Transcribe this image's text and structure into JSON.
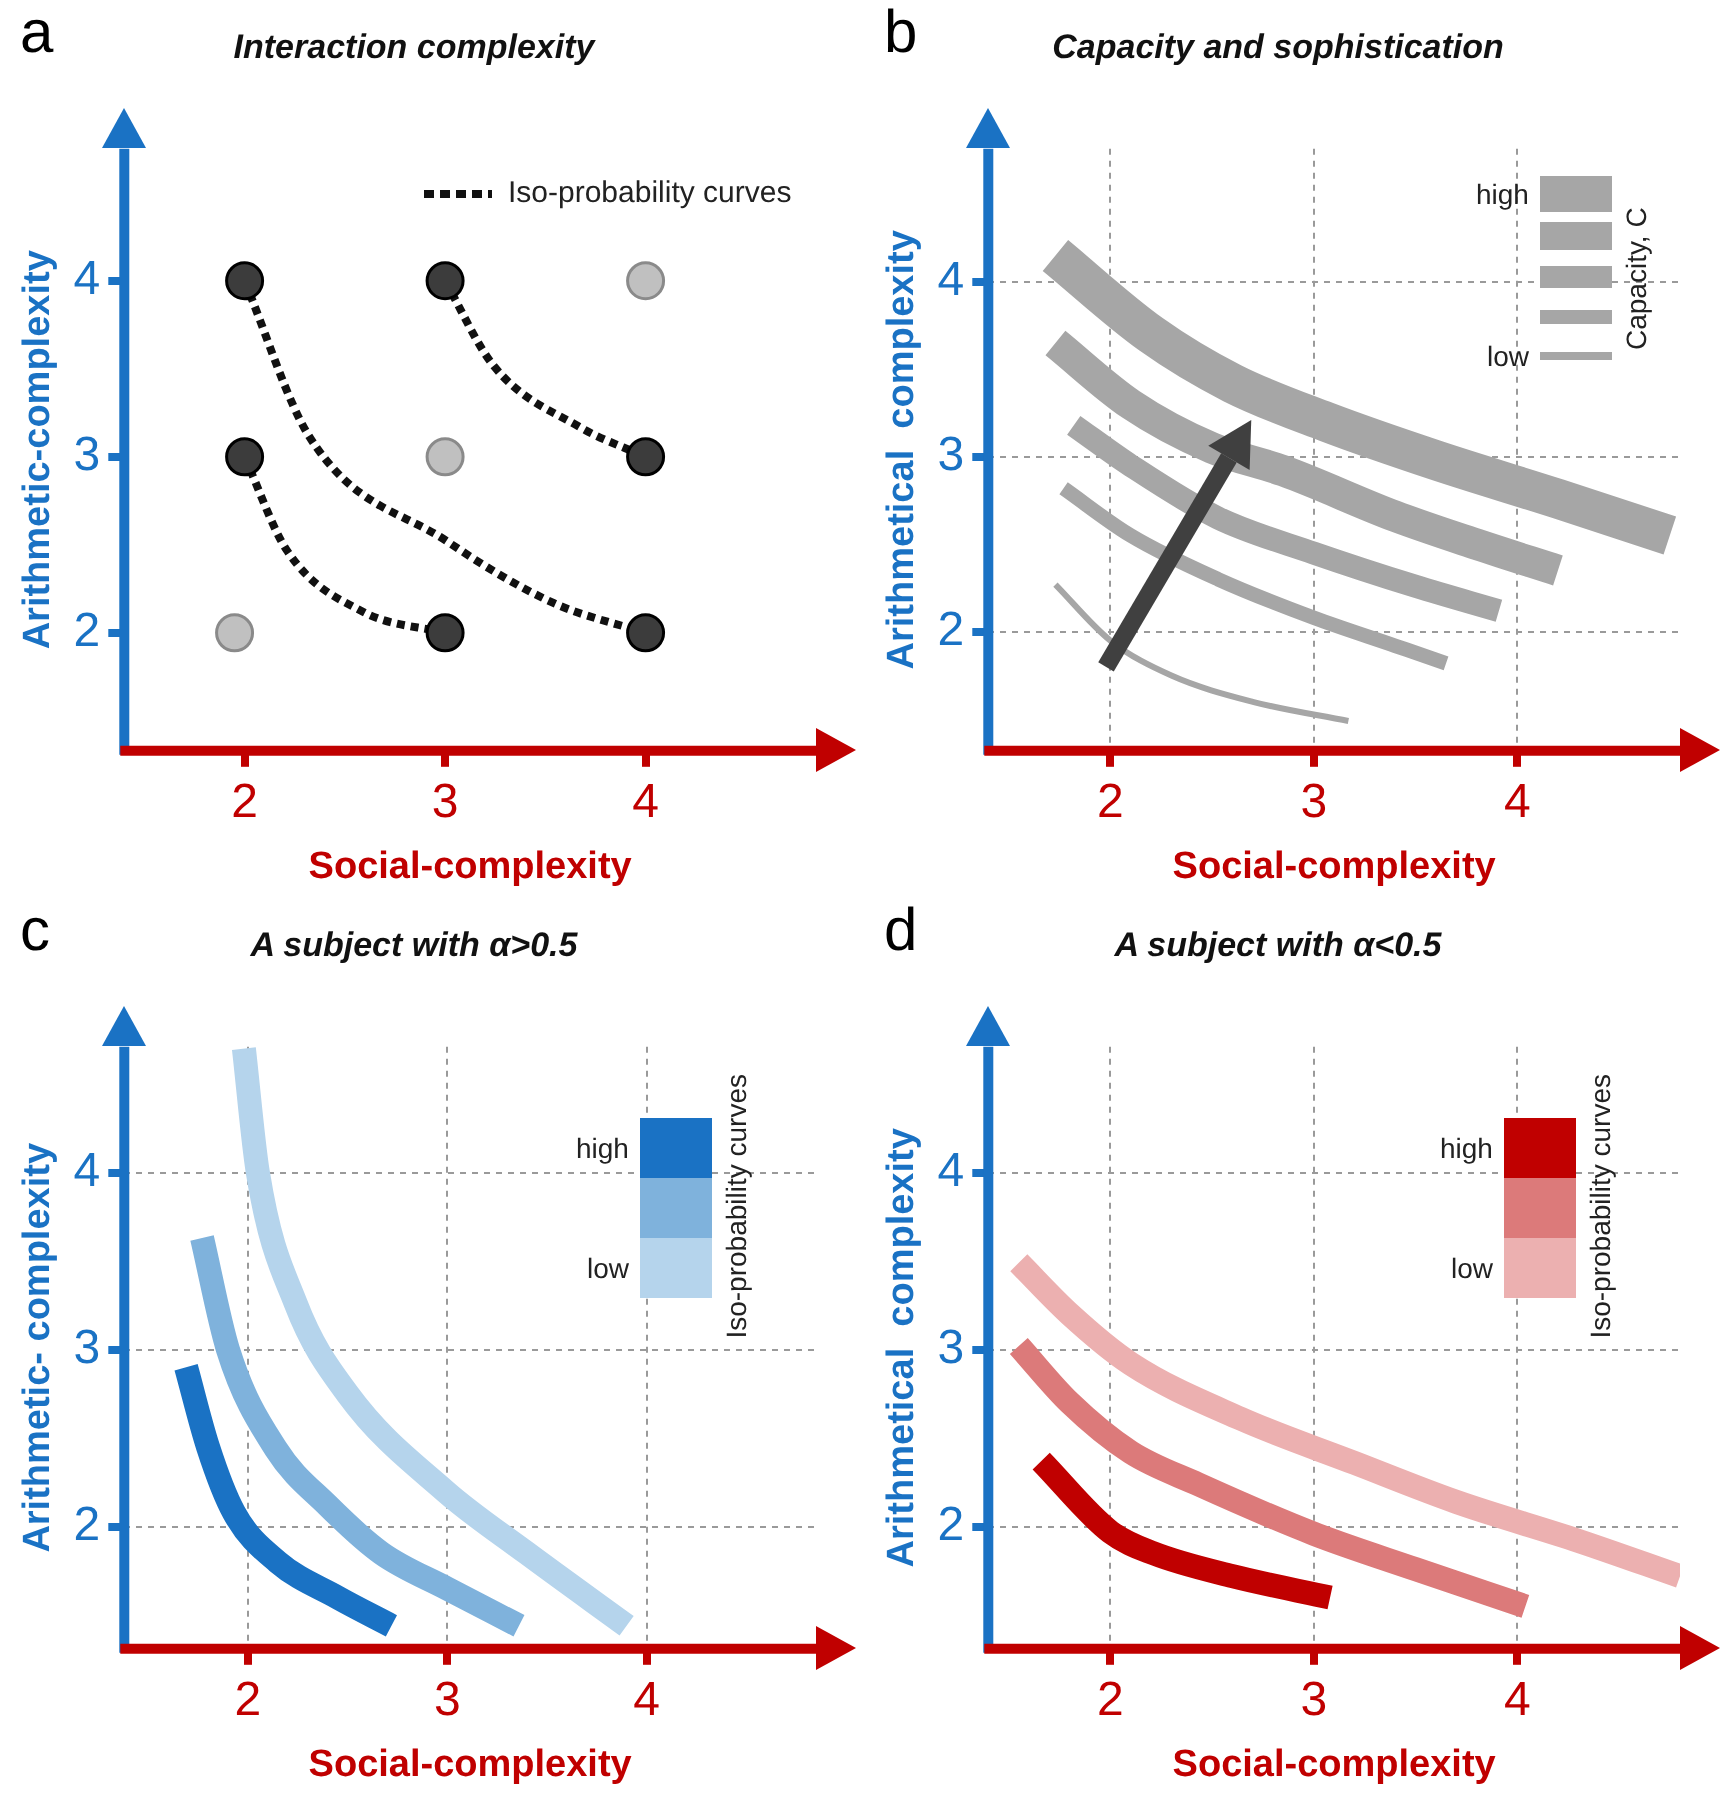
{
  "chart_data": [
    {
      "type": "scatter",
      "title": "Interaction complexity",
      "xlabel": "Social-complexity",
      "ylabel": "Arithmetic-complexity",
      "annotations": [
        "a"
      ],
      "xlim": [
        1.4,
        4.85
      ],
      "ylim": [
        1.33,
        4.75
      ],
      "xticks": [
        2,
        3,
        4
      ],
      "yticks": [
        2,
        3,
        4
      ],
      "grid": false,
      "legend": "top right",
      "marker": "circle",
      "series": [
        {
          "color": "#3c3c3c",
          "x": [
            2,
            2,
            3,
            3,
            4,
            4
          ],
          "values": [
            4,
            3,
            4,
            2,
            3,
            2
          ]
        },
        {
          "color": "#c0c0c0",
          "x": [
            1.95,
            3,
            4
          ],
          "values": [
            2,
            3,
            4
          ]
        },
        {
          "name": "Iso-probability curves",
          "type": "line",
          "line_style": "dashed",
          "marker": "none",
          "color": "#111111",
          "x": [
            2,
            2.32,
            3.01,
            3.54,
            4
          ],
          "values": [
            4,
            3.12,
            2.52,
            2.17,
            2
          ]
        },
        {
          "type": "line",
          "line_style": "dashed",
          "marker": "none",
          "color": "#111111",
          "x": [
            2,
            2.21,
            2.59,
            3
          ],
          "values": [
            3,
            2.47,
            2.12,
            2
          ]
        },
        {
          "type": "line",
          "line_style": "dashed",
          "marker": "none",
          "color": "#111111",
          "x": [
            3,
            3.24,
            3.67,
            4
          ],
          "values": [
            4,
            3.52,
            3.17,
            3
          ]
        }
      ]
    },
    {
      "type": "line",
      "title": "Capacity and sophistication",
      "xlabel": "Social-complexity",
      "ylabel": "Arithmetical  complexity",
      "annotations": [
        "b"
      ],
      "legend_title": "Capacity, C",
      "xlim": [
        1.4,
        4.8
      ],
      "ylim": [
        1.32,
        4.76
      ],
      "xticks": [
        2,
        3,
        4
      ],
      "yticks": [
        2,
        3,
        4
      ],
      "grid": true,
      "legend": "top right",
      "series": [
        {
          "name": "high",
          "color": "#a6a6a6",
          "x": [
            1.73,
            2.2,
            2.6,
            3.06,
            3.6,
            4.2,
            4.75
          ],
          "values": [
            4.15,
            3.7,
            3.42,
            3.2,
            2.98,
            2.76,
            2.55
          ]
        },
        {
          "color": "#a6a6a6",
          "x": [
            1.73,
            2.1,
            2.5,
            2.85,
            3.4,
            3.8,
            4.2
          ],
          "values": [
            3.65,
            3.3,
            3.05,
            2.92,
            2.66,
            2.5,
            2.35
          ]
        },
        {
          "color": "#a6a6a6",
          "x": [
            1.82,
            2.1,
            2.53,
            3,
            3.5,
            3.91
          ],
          "values": [
            3.18,
            2.95,
            2.65,
            2.45,
            2.26,
            2.12
          ]
        },
        {
          "color": "#a6a6a6",
          "x": [
            1.77,
            2.1,
            2.53,
            3,
            3.4,
            3.65
          ],
          "values": [
            2.82,
            2.55,
            2.3,
            2.08,
            1.92,
            1.82
          ]
        },
        {
          "name": "low",
          "color": "#a6a6a6",
          "x": [
            1.73,
            2,
            2.3,
            2.7,
            3.17
          ],
          "values": [
            2.27,
            1.95,
            1.75,
            1.6,
            1.49
          ]
        }
      ]
    },
    {
      "type": "line",
      "title": "A subject with α>0.5",
      "xlabel": "Social-complexity",
      "ylabel": "Arithmetic- complexity",
      "annotations": [
        "c"
      ],
      "legend_title": "Iso-probability curves",
      "xlim": [
        1.38,
        4.85
      ],
      "ylim": [
        1.31,
        4.71
      ],
      "xticks": [
        2,
        3,
        4
      ],
      "yticks": [
        2,
        3,
        4
      ],
      "grid": true,
      "legend": "top right",
      "series": [
        {
          "name": "high",
          "color": "#1a72c4",
          "x": [
            1.69,
            1.8,
            1.93,
            2.15,
            2.45,
            2.72
          ],
          "values": [
            2.9,
            2.45,
            2.08,
            1.8,
            1.6,
            1.44
          ]
        },
        {
          "color": "#7fb2dc",
          "x": [
            1.77,
            1.9,
            2.14,
            2.4,
            2.67,
            3,
            3.36
          ],
          "values": [
            3.63,
            3,
            2.44,
            2.12,
            1.85,
            1.65,
            1.44
          ]
        },
        {
          "name": "low",
          "color": "#b5d4ec",
          "x": [
            1.98,
            2.05,
            2.24,
            2.5,
            2.99,
            3.4,
            3.9
          ],
          "values": [
            4.7,
            4,
            3.26,
            2.75,
            2.2,
            1.85,
            1.44
          ]
        }
      ]
    },
    {
      "type": "line",
      "title": "A subject with α<0.5",
      "xlabel": "Social-complexity",
      "ylabel": "Arithmetical  complexity",
      "annotations": [
        "d"
      ],
      "legend_title": "Iso-probability curves",
      "xlim": [
        1.4,
        4.8
      ],
      "ylim": [
        1.31,
        4.71
      ],
      "xticks": [
        2,
        3,
        4
      ],
      "yticks": [
        2,
        3,
        4
      ],
      "grid": true,
      "legend": "top right",
      "series": [
        {
          "name": "high",
          "color": "#c00000",
          "x": [
            1.66,
            2,
            2.21,
            2.6,
            3.08
          ],
          "values": [
            2.37,
            1.97,
            1.85,
            1.72,
            1.6
          ]
        },
        {
          "color": "#dc7a7a",
          "x": [
            1.55,
            1.8,
            2.1,
            2.43,
            3,
            3.5,
            4.04
          ],
          "values": [
            3.02,
            2.7,
            2.42,
            2.24,
            1.96,
            1.76,
            1.55
          ]
        },
        {
          "name": "low",
          "color": "#ecb0b0",
          "x": [
            1.55,
            1.8,
            2.1,
            2.64,
            3.2,
            3.7,
            4.3,
            4.8
          ],
          "values": [
            3.49,
            3.2,
            2.92,
            2.61,
            2.36,
            2.14,
            1.92,
            1.72
          ]
        }
      ]
    }
  ]
}
